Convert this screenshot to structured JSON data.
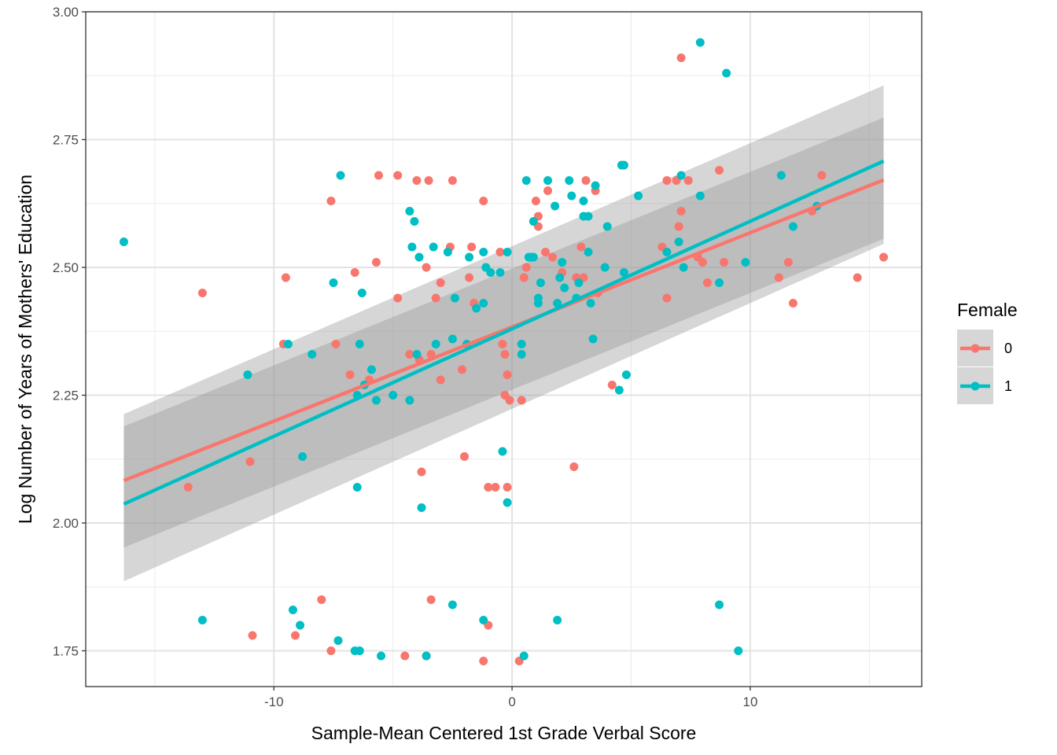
{
  "chart_data": {
    "type": "scatter",
    "xlabel": "Sample-Mean Centered 1st Grade Verbal Score",
    "ylabel": "Log Number of Years of Mothers' Education",
    "xlim": [
      -17.9,
      17.2
    ],
    "ylim": [
      1.68,
      3.0
    ],
    "x_ticks": [
      -10,
      0,
      10
    ],
    "x_tick_labels": [
      "-10",
      "0",
      "10"
    ],
    "y_ticks": [
      1.75,
      2.0,
      2.25,
      2.5,
      2.75,
      3.0
    ],
    "y_tick_labels": [
      "1.75",
      "2.00",
      "2.25",
      "2.50",
      "2.75",
      "3.00"
    ],
    "grid": true,
    "legend": {
      "title": "Female",
      "position": "right",
      "entries": [
        {
          "label": "0",
          "color": "#F8766D"
        },
        {
          "label": "1",
          "color": "#00BFC4"
        }
      ]
    },
    "series": [
      {
        "name": "0",
        "color": "#F8766D",
        "points": [
          [
            -13.6,
            2.07
          ],
          [
            -13.0,
            2.45
          ],
          [
            -11.0,
            2.12
          ],
          [
            -10.9,
            1.78
          ],
          [
            -9.5,
            2.48
          ],
          [
            -9.6,
            2.35
          ],
          [
            -9.1,
            1.78
          ],
          [
            -8.0,
            1.85
          ],
          [
            -7.6,
            2.63
          ],
          [
            -7.4,
            2.35
          ],
          [
            -7.6,
            1.75
          ],
          [
            -6.8,
            2.29
          ],
          [
            -6.6,
            2.49
          ],
          [
            -6.0,
            2.28
          ],
          [
            -5.7,
            2.51
          ],
          [
            -5.6,
            2.68
          ],
          [
            -4.8,
            2.68
          ],
          [
            -4.8,
            2.44
          ],
          [
            -4.5,
            1.74
          ],
          [
            -4.3,
            2.33
          ],
          [
            -4.0,
            2.67
          ],
          [
            -3.9,
            2.32
          ],
          [
            -3.8,
            2.1
          ],
          [
            -3.6,
            1.74
          ],
          [
            -3.6,
            2.5
          ],
          [
            -3.5,
            2.67
          ],
          [
            -3.4,
            2.33
          ],
          [
            -3.4,
            1.85
          ],
          [
            -3.2,
            2.44
          ],
          [
            -3.0,
            2.47
          ],
          [
            -3.0,
            2.28
          ],
          [
            -2.6,
            2.54
          ],
          [
            -2.5,
            2.67
          ],
          [
            -2.1,
            2.3
          ],
          [
            -2.0,
            2.13
          ],
          [
            -1.7,
            2.54
          ],
          [
            -1.8,
            2.48
          ],
          [
            -1.6,
            2.43
          ],
          [
            -1.2,
            2.63
          ],
          [
            -1.2,
            1.73
          ],
          [
            -1.0,
            1.8
          ],
          [
            -1.0,
            2.07
          ],
          [
            -0.7,
            2.07
          ],
          [
            -0.5,
            2.53
          ],
          [
            -0.4,
            2.35
          ],
          [
            -0.3,
            2.33
          ],
          [
            -0.2,
            2.29
          ],
          [
            -0.3,
            2.25
          ],
          [
            -0.2,
            2.07
          ],
          [
            -0.1,
            2.24
          ],
          [
            0.3,
            1.73
          ],
          [
            0.4,
            2.24
          ],
          [
            0.5,
            2.48
          ],
          [
            0.6,
            2.5
          ],
          [
            1.0,
            2.63
          ],
          [
            1.1,
            2.58
          ],
          [
            1.1,
            2.6
          ],
          [
            1.4,
            2.53
          ],
          [
            1.5,
            2.65
          ],
          [
            1.7,
            2.52
          ],
          [
            2.1,
            2.49
          ],
          [
            2.6,
            2.11
          ],
          [
            2.7,
            2.48
          ],
          [
            2.9,
            2.54
          ],
          [
            3.0,
            2.48
          ],
          [
            3.1,
            2.67
          ],
          [
            3.5,
            2.65
          ],
          [
            3.6,
            2.45
          ],
          [
            4.2,
            2.27
          ],
          [
            6.3,
            2.54
          ],
          [
            6.5,
            2.67
          ],
          [
            6.5,
            2.44
          ],
          [
            6.9,
            2.67
          ],
          [
            7.0,
            2.58
          ],
          [
            7.1,
            2.61
          ],
          [
            7.1,
            2.91
          ],
          [
            7.4,
            2.67
          ],
          [
            7.8,
            2.52
          ],
          [
            8.0,
            2.51
          ],
          [
            8.2,
            2.47
          ],
          [
            8.7,
            2.69
          ],
          [
            8.9,
            2.51
          ],
          [
            11.2,
            2.48
          ],
          [
            11.6,
            2.51
          ],
          [
            11.8,
            2.43
          ],
          [
            13.0,
            2.68
          ],
          [
            12.6,
            2.61
          ],
          [
            14.5,
            2.48
          ],
          [
            15.6,
            2.52
          ]
        ],
        "fit_start": [
          -16.3,
          2.083
        ],
        "fit_end": [
          15.6,
          2.671
        ],
        "ci_lower_start": 1.952,
        "ci_upper_start": 2.189,
        "ci_lower_end": 2.556,
        "ci_upper_end": 2.793
      },
      {
        "name": "1",
        "color": "#00BFC4",
        "points": [
          [
            -16.3,
            2.55
          ],
          [
            -13.0,
            1.81
          ],
          [
            -11.1,
            2.29
          ],
          [
            -9.4,
            2.35
          ],
          [
            -9.2,
            1.83
          ],
          [
            -8.9,
            1.8
          ],
          [
            -8.8,
            2.13
          ],
          [
            -8.4,
            2.33
          ],
          [
            -7.5,
            2.47
          ],
          [
            -7.2,
            2.68
          ],
          [
            -7.3,
            1.77
          ],
          [
            -6.5,
            2.07
          ],
          [
            -6.5,
            2.25
          ],
          [
            -6.4,
            2.35
          ],
          [
            -6.3,
            2.45
          ],
          [
            -6.2,
            2.27
          ],
          [
            -6.4,
            1.75
          ],
          [
            -6.6,
            1.75
          ],
          [
            -5.9,
            2.3
          ],
          [
            -5.7,
            2.24
          ],
          [
            -5.5,
            1.74
          ],
          [
            -5.0,
            2.25
          ],
          [
            -4.3,
            2.61
          ],
          [
            -4.2,
            2.54
          ],
          [
            -4.1,
            2.59
          ],
          [
            -3.9,
            2.52
          ],
          [
            -4.3,
            2.24
          ],
          [
            -4.0,
            2.33
          ],
          [
            -3.8,
            2.03
          ],
          [
            -3.6,
            1.74
          ],
          [
            -3.3,
            2.54
          ],
          [
            -3.2,
            2.35
          ],
          [
            -2.7,
            2.53
          ],
          [
            -2.5,
            2.36
          ],
          [
            -2.4,
            2.44
          ],
          [
            -2.5,
            1.84
          ],
          [
            -1.9,
            2.35
          ],
          [
            -1.8,
            2.52
          ],
          [
            -1.5,
            2.42
          ],
          [
            -1.2,
            2.53
          ],
          [
            -1.2,
            2.43
          ],
          [
            -1.1,
            2.5
          ],
          [
            -0.9,
            2.49
          ],
          [
            -1.2,
            1.81
          ],
          [
            -0.5,
            2.49
          ],
          [
            -0.2,
            2.53
          ],
          [
            -0.4,
            2.14
          ],
          [
            -0.2,
            2.04
          ],
          [
            0.4,
            2.35
          ],
          [
            0.4,
            2.33
          ],
          [
            0.5,
            1.74
          ],
          [
            0.6,
            2.67
          ],
          [
            0.7,
            2.52
          ],
          [
            0.8,
            2.52
          ],
          [
            0.9,
            2.52
          ],
          [
            0.9,
            2.59
          ],
          [
            1.1,
            2.43
          ],
          [
            1.1,
            2.44
          ],
          [
            1.2,
            2.47
          ],
          [
            1.5,
            2.67
          ],
          [
            1.8,
            2.62
          ],
          [
            1.9,
            2.43
          ],
          [
            1.9,
            1.81
          ],
          [
            2.0,
            2.48
          ],
          [
            2.1,
            2.51
          ],
          [
            2.2,
            2.46
          ],
          [
            2.4,
            2.67
          ],
          [
            2.5,
            2.64
          ],
          [
            2.7,
            2.44
          ],
          [
            2.8,
            2.47
          ],
          [
            3.0,
            2.6
          ],
          [
            3.0,
            2.63
          ],
          [
            3.2,
            2.53
          ],
          [
            3.3,
            2.43
          ],
          [
            3.2,
            2.6
          ],
          [
            3.4,
            2.36
          ],
          [
            3.5,
            2.66
          ],
          [
            3.9,
            2.5
          ],
          [
            4.0,
            2.58
          ],
          [
            4.6,
            2.7
          ],
          [
            4.7,
            2.7
          ],
          [
            4.5,
            2.26
          ],
          [
            4.8,
            2.29
          ],
          [
            4.7,
            2.49
          ],
          [
            5.3,
            2.64
          ],
          [
            6.5,
            2.53
          ],
          [
            7.0,
            2.55
          ],
          [
            7.1,
            2.68
          ],
          [
            7.2,
            2.5
          ],
          [
            7.9,
            2.64
          ],
          [
            7.9,
            2.94
          ],
          [
            9.0,
            2.88
          ],
          [
            8.7,
            2.47
          ],
          [
            8.7,
            1.84
          ],
          [
            9.5,
            1.75
          ],
          [
            9.8,
            2.51
          ],
          [
            11.3,
            2.68
          ],
          [
            11.8,
            2.58
          ],
          [
            12.8,
            2.62
          ]
        ],
        "fit_start": [
          -16.3,
          2.037
        ],
        "fit_end": [
          15.6,
          2.708
        ],
        "ci_lower_start": 1.886,
        "ci_upper_start": 2.213,
        "ci_lower_end": 2.546,
        "ci_upper_end": 2.856
      }
    ]
  }
}
